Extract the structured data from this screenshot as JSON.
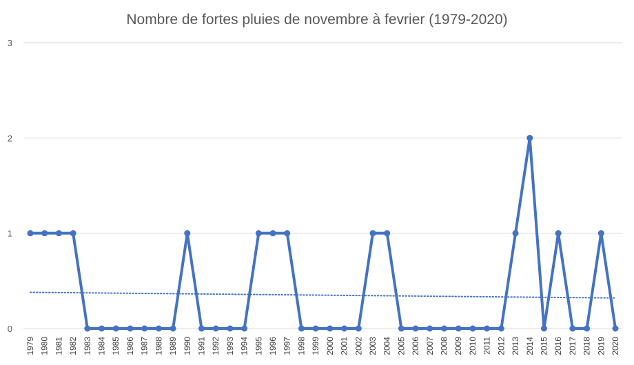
{
  "chart_data": {
    "type": "line",
    "title": "Nombre de fortes pluies de novembre à fevrier (1979-2020)",
    "xlabel": "",
    "ylabel": "",
    "ylim": [
      0,
      3
    ],
    "yticks": [
      "0",
      "1",
      "2",
      "3"
    ],
    "grid": true,
    "legend": "none",
    "colors": {
      "series": "#4472c4",
      "trend": "#4472c4",
      "grid": "#d9d9d9",
      "text": "#595959"
    },
    "x": [
      "1979",
      "1980",
      "1981",
      "1982",
      "1983",
      "1984",
      "1985",
      "1986",
      "1987",
      "1988",
      "1989",
      "1990",
      "1991",
      "1992",
      "1993",
      "1994",
      "1995",
      "1996",
      "1997",
      "1998",
      "1999",
      "2000",
      "2001",
      "2002",
      "2003",
      "2004",
      "2005",
      "2006",
      "2007",
      "2008",
      "2009",
      "2010",
      "2011",
      "2012",
      "2013",
      "2014",
      "2015",
      "2016",
      "2017",
      "2018",
      "2019",
      "2020"
    ],
    "series": [
      {
        "values": [
          1,
          1,
          1,
          1,
          0,
          0,
          0,
          0,
          0,
          0,
          0,
          1,
          0,
          0,
          0,
          0,
          1,
          1,
          1,
          0,
          0,
          0,
          0,
          0,
          1,
          1,
          0,
          0,
          0,
          0,
          0,
          0,
          0,
          0,
          1,
          2,
          0,
          1,
          0,
          0,
          1,
          0
        ]
      }
    ],
    "trendline": {
      "type": "linear",
      "style": "dotted",
      "start": 0.38,
      "end": 0.32
    }
  }
}
